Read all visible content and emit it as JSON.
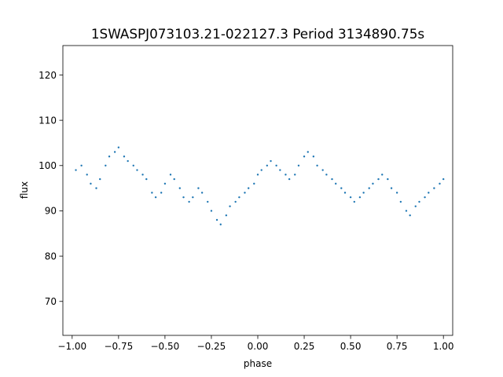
{
  "chart_data": {
    "type": "scatter",
    "title": "1SWASPJ073103.21-022127.3 Period 3134890.75s",
    "xlabel": "phase",
    "ylabel": "flux",
    "xlim": [
      -1.05,
      1.05
    ],
    "ylim": [
      62.5,
      126.5
    ],
    "x_ticks": [
      -1.0,
      -0.75,
      -0.5,
      -0.25,
      0.0,
      0.25,
      0.5,
      0.75,
      1.0
    ],
    "x_tick_labels": [
      "−1.00",
      "−0.75",
      "−0.50",
      "−0.25",
      "0.00",
      "0.25",
      "0.50",
      "0.75",
      "1.00"
    ],
    "y_ticks": [
      70,
      80,
      90,
      100,
      110,
      120
    ],
    "y_tick_labels": [
      "70",
      "80",
      "90",
      "100",
      "110",
      "120"
    ],
    "grid": false,
    "marker_color": "#1f77b4",
    "series": [
      {
        "x": [
          -0.98,
          -0.95,
          -0.92,
          -0.9,
          -0.87,
          -0.85,
          -0.82,
          -0.8,
          -0.77,
          -0.75,
          -0.72,
          -0.7,
          -0.67,
          -0.65,
          -0.62,
          -0.6,
          -0.57,
          -0.55,
          -0.52,
          -0.5,
          -0.47,
          -0.45,
          -0.42,
          -0.4,
          -0.37,
          -0.35,
          -0.32,
          -0.3,
          -0.27,
          -0.25,
          -0.22,
          -0.2,
          -0.17,
          -0.15,
          -0.12,
          -0.1,
          -0.07,
          -0.05,
          -0.02,
          0.0,
          0.02,
          0.05,
          0.07,
          0.1,
          0.12,
          0.15,
          0.17,
          0.2,
          0.22,
          0.25,
          0.27,
          0.3,
          0.32,
          0.35,
          0.37,
          0.4,
          0.42,
          0.45,
          0.47,
          0.5,
          0.52,
          0.55,
          0.57,
          0.6,
          0.62,
          0.65,
          0.67,
          0.7,
          0.72,
          0.75,
          0.77,
          0.8,
          0.82,
          0.85,
          0.87,
          0.9,
          0.92,
          0.95,
          0.98,
          1.0
        ],
        "y": [
          99,
          100,
          98,
          96,
          95,
          97,
          100,
          102,
          103,
          104,
          102,
          101,
          100,
          99,
          98,
          97,
          94,
          93,
          94,
          96,
          98,
          97,
          95,
          93,
          92,
          93,
          95,
          94,
          92,
          90,
          88,
          87,
          89,
          91,
          92,
          93,
          94,
          95,
          96,
          98,
          99,
          100,
          101,
          100,
          99,
          98,
          97,
          98,
          100,
          102,
          103,
          102,
          100,
          99,
          98,
          97,
          96,
          95,
          94,
          93,
          92,
          93,
          94,
          95,
          96,
          97,
          98,
          97,
          95,
          94,
          92,
          90,
          89,
          91,
          92,
          93,
          94,
          95,
          96,
          97
        ]
      }
    ]
  }
}
